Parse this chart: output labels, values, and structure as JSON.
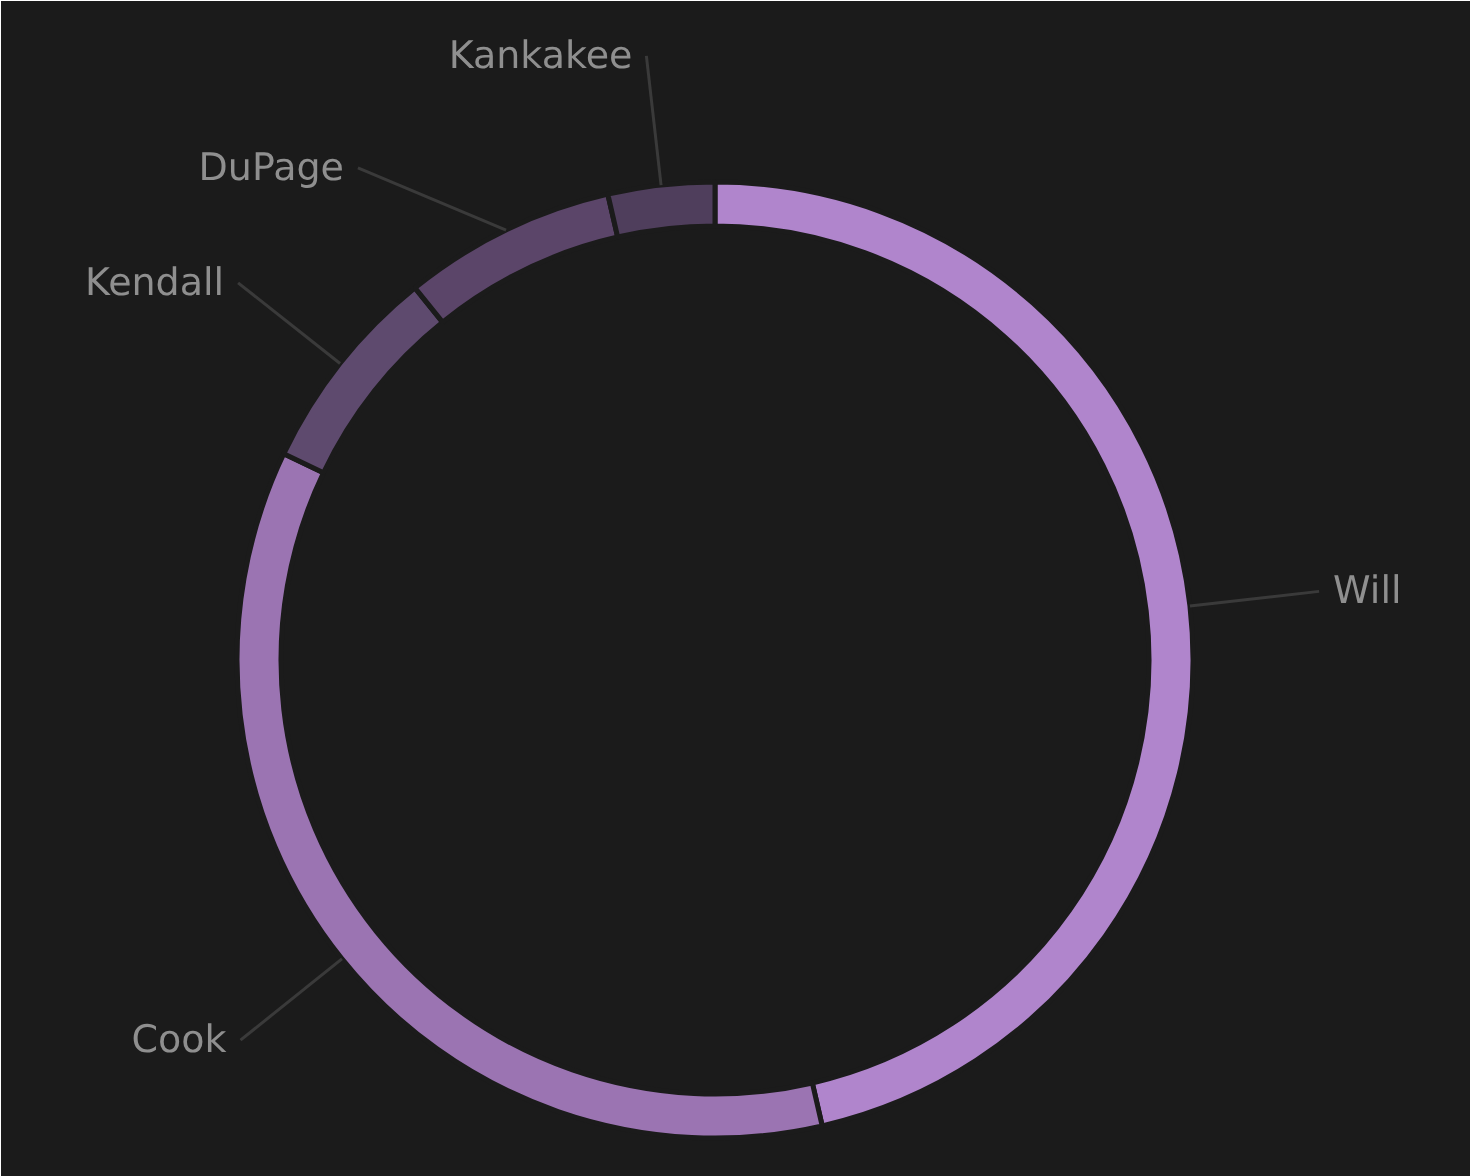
{
  "chart_data": {
    "type": "donut",
    "categories": [
      "Will",
      "Cook",
      "Kendall",
      "DuPage",
      "Kankakee"
    ],
    "values": [
      46.4,
      35.7,
      7.1,
      7.2,
      3.6
    ],
    "colors": [
      "#b085cc",
      "#9b74b2",
      "#5e4a6e",
      "#5b4569",
      "#4f3e5c"
    ]
  }
}
